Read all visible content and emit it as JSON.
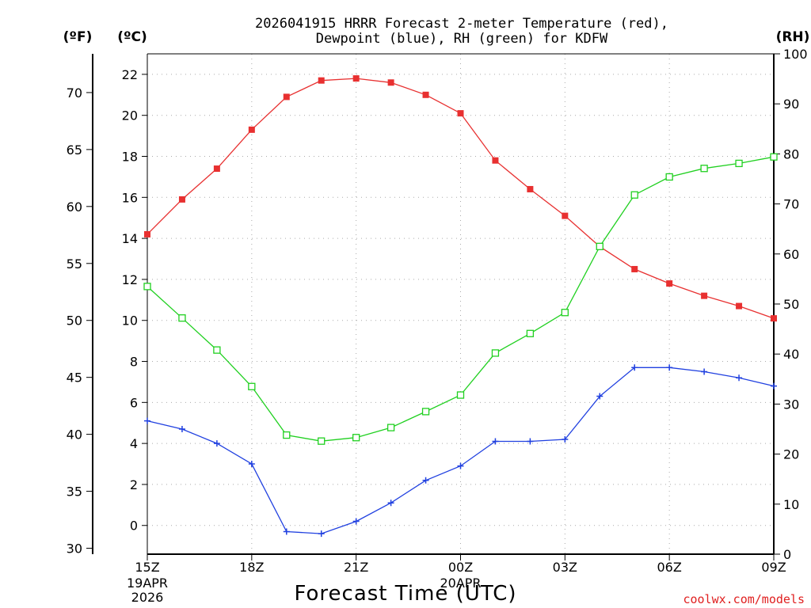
{
  "chart_data": {
    "type": "line",
    "title_lines": [
      "2026041915 HRRR Forecast 2-meter Temperature (red),",
      "Dewpoint (blue), RH (green) for KDFW"
    ],
    "xlabel": "Forecast Time (UTC)",
    "credit": "coolwx.com/models",
    "units": {
      "fahrenheit": "(ºF)",
      "celsius": "(ºC)",
      "rh": "(RH)"
    },
    "x_hours": [
      0,
      1,
      2,
      3,
      4,
      5,
      6,
      7,
      8,
      9,
      10,
      11,
      12,
      13,
      14,
      15,
      16,
      17,
      18
    ],
    "x_ticks": [
      {
        "hour": 0,
        "label": "15Z",
        "date_lines": [
          "19APR",
          "2026"
        ]
      },
      {
        "hour": 3,
        "label": "18Z",
        "date_lines": []
      },
      {
        "hour": 6,
        "label": "21Z",
        "date_lines": []
      },
      {
        "hour": 9,
        "label": "00Z",
        "date_lines": [
          "20APR"
        ]
      },
      {
        "hour": 12,
        "label": "03Z",
        "date_lines": []
      },
      {
        "hour": 15,
        "label": "06Z",
        "date_lines": []
      },
      {
        "hour": 18,
        "label": "09Z",
        "date_lines": []
      }
    ],
    "celsius_axis": {
      "min": -1.4,
      "max": 23.0,
      "ticks": [
        "0",
        "2",
        "4",
        "6",
        "8",
        "10",
        "12",
        "14",
        "16",
        "18",
        "20",
        "22"
      ]
    },
    "fahrenheit_axis": {
      "ticks": [
        "30",
        "35",
        "40",
        "45",
        "50",
        "55",
        "60",
        "65",
        "70"
      ]
    },
    "rh_axis": {
      "min": 0,
      "max": 100,
      "ticks": [
        "0",
        "10",
        "20",
        "30",
        "40",
        "50",
        "60",
        "70",
        "80",
        "90",
        "100"
      ]
    },
    "series": [
      {
        "name": "Temperature",
        "axis": "celsius",
        "color": "#e83030",
        "marker": "filled-square",
        "values": [
          14.2,
          15.9,
          17.4,
          19.3,
          20.9,
          21.7,
          21.8,
          21.6,
          21.0,
          20.1,
          17.8,
          16.4,
          15.1,
          13.6,
          12.5,
          11.8,
          11.2,
          10.7,
          10.1
        ]
      },
      {
        "name": "Dewpoint",
        "axis": "celsius",
        "color": "#2040e0",
        "marker": "plus",
        "values": [
          5.1,
          4.7,
          4.0,
          3.0,
          -0.3,
          -0.4,
          0.2,
          1.1,
          2.2,
          2.9,
          4.1,
          4.1,
          4.2,
          6.3,
          7.7,
          7.7,
          7.5,
          7.2,
          6.8
        ]
      },
      {
        "name": "RH",
        "axis": "rh",
        "color": "#20d020",
        "marker": "open-square",
        "values": [
          53.5,
          47.2,
          40.8,
          33.5,
          23.8,
          22.6,
          23.3,
          25.3,
          28.5,
          31.8,
          40.2,
          44.1,
          48.3,
          61.5,
          71.8,
          75.4,
          77.1,
          78.1,
          79.4
        ]
      }
    ]
  }
}
